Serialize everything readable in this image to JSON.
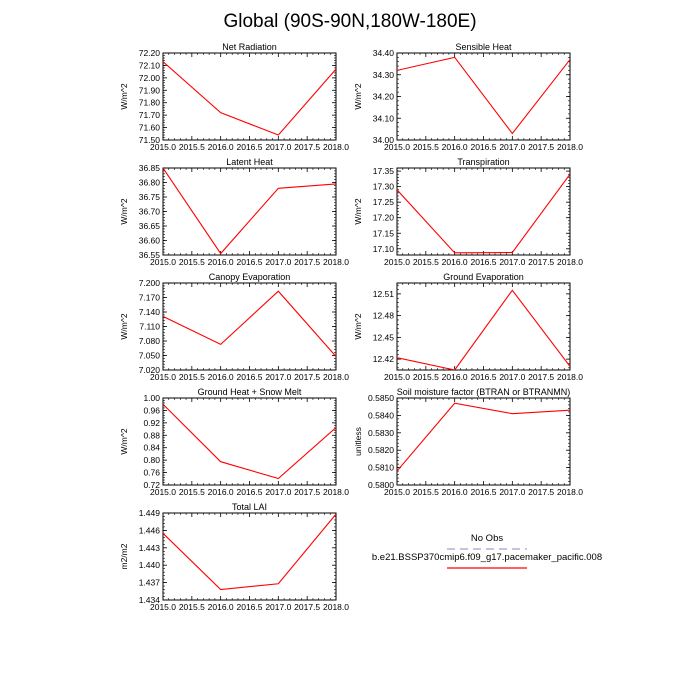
{
  "title": "Global (90S-90N,180W-180E)",
  "colors": {
    "model_line": "#ff0000",
    "obs_line": "#a0a0d0",
    "axis": "#000000"
  },
  "legend": {
    "entries": [
      {
        "name": "No Obs",
        "color": "#a0a0d0",
        "style": "dashed"
      },
      {
        "name": "b.e21.BSSP370cmip6.f09_g17.pacemaker_pacific.008",
        "color": "#ff0000",
        "style": "solid"
      }
    ]
  },
  "chart_data": [
    {
      "type": "line",
      "title": "Net Radiation",
      "ylabel": "W/m^2",
      "x": [
        2015.0,
        2016.0,
        2017.0,
        2018.0
      ],
      "series": [
        {
          "name": "b.e21.BSSP370cmip6.f09_g17.pacemaker_pacific.008",
          "values": [
            72.13,
            71.72,
            71.54,
            72.07
          ]
        }
      ],
      "xlim": [
        2015.0,
        2018.0
      ],
      "ylim": [
        71.5,
        72.2
      ],
      "xticks": [
        "2015.0",
        "2015.5",
        "2016.0",
        "2016.5",
        "2017.0",
        "2017.5",
        "2018.0"
      ],
      "yticks": [
        "71.50",
        "71.60",
        "71.70",
        "71.80",
        "71.90",
        "72.00",
        "72.10",
        "72.20"
      ]
    },
    {
      "type": "line",
      "title": "Sensible Heat",
      "ylabel": "W/m^2",
      "x": [
        2015.0,
        2016.0,
        2017.0,
        2018.0
      ],
      "series": [
        {
          "name": "b.e21.BSSP370cmip6.f09_g17.pacemaker_pacific.008",
          "values": [
            34.32,
            34.38,
            34.03,
            34.37
          ]
        }
      ],
      "xlim": [
        2015.0,
        2018.0
      ],
      "ylim": [
        34.0,
        34.4
      ],
      "xticks": [
        "2015.0",
        "2015.5",
        "2016.0",
        "2016.5",
        "2017.0",
        "2017.5",
        "2018.0"
      ],
      "yticks": [
        "34.00",
        "34.10",
        "34.20",
        "34.30",
        "34.40"
      ]
    },
    {
      "type": "line",
      "title": "Latent Heat",
      "ylabel": "W/m^2",
      "x": [
        2015.0,
        2016.0,
        2017.0,
        2018.0
      ],
      "series": [
        {
          "name": "b.e21.BSSP370cmip6.f09_g17.pacemaker_pacific.008",
          "values": [
            36.85,
            36.555,
            36.78,
            36.795
          ]
        }
      ],
      "xlim": [
        2015.0,
        2018.0
      ],
      "ylim": [
        36.55,
        36.85
      ],
      "xticks": [
        "2015.0",
        "2015.5",
        "2016.0",
        "2016.5",
        "2017.0",
        "2017.5",
        "2018.0"
      ],
      "yticks": [
        "36.55",
        "36.60",
        "36.65",
        "36.70",
        "36.75",
        "36.80",
        "36.85"
      ]
    },
    {
      "type": "line",
      "title": "Transpiration",
      "ylabel": "W/m^2",
      "x": [
        2015.0,
        2016.0,
        2017.0,
        2018.0
      ],
      "series": [
        {
          "name": "b.e21.BSSP370cmip6.f09_g17.pacemaker_pacific.008",
          "values": [
            17.29,
            17.087,
            17.088,
            17.34
          ]
        }
      ],
      "xlim": [
        2015.0,
        2018.0
      ],
      "ylim": [
        17.08,
        17.36
      ],
      "xticks": [
        "2015.0",
        "2015.5",
        "2016.0",
        "2016.5",
        "2017.0",
        "2017.5",
        "2018.0"
      ],
      "yticks": [
        "17.10",
        "17.15",
        "17.20",
        "17.25",
        "17.30",
        "17.35"
      ]
    },
    {
      "type": "line",
      "title": "Canopy Evaporation",
      "ylabel": "W/m^2",
      "x": [
        2015.0,
        2016.0,
        2017.0,
        2018.0
      ],
      "series": [
        {
          "name": "b.e21.BSSP370cmip6.f09_g17.pacemaker_pacific.008",
          "values": [
            7.131,
            7.073,
            7.183,
            7.048
          ]
        }
      ],
      "xlim": [
        2015.0,
        2018.0
      ],
      "ylim": [
        7.02,
        7.2
      ],
      "xticks": [
        "2015.0",
        "2015.5",
        "2016.0",
        "2016.5",
        "2017.0",
        "2017.5",
        "2018.0"
      ],
      "yticks": [
        "7.020",
        "7.050",
        "7.080",
        "7.110",
        "7.140",
        "7.170",
        "7.200"
      ]
    },
    {
      "type": "line",
      "title": "Ground Evaporation",
      "ylabel": "W/m^2",
      "x": [
        2015.0,
        2016.0,
        2017.0,
        2018.0
      ],
      "series": [
        {
          "name": "b.e21.BSSP370cmip6.f09_g17.pacemaker_pacific.008",
          "values": [
            12.422,
            12.405,
            12.515,
            12.41
          ]
        }
      ],
      "xlim": [
        2015.0,
        2018.0
      ],
      "ylim": [
        12.405,
        12.525
      ],
      "xticks": [
        "2015.0",
        "2015.5",
        "2016.0",
        "2016.5",
        "2017.0",
        "2017.5",
        "2018.0"
      ],
      "yticks": [
        "12.42",
        "12.45",
        "12.48",
        "12.51"
      ]
    },
    {
      "type": "line",
      "title": "Ground Heat + Snow Melt",
      "ylabel": "W/m^2",
      "x": [
        2015.0,
        2016.0,
        2017.0,
        2018.0
      ],
      "series": [
        {
          "name": "b.e21.BSSP370cmip6.f09_g17.pacemaker_pacific.008",
          "values": [
            0.98,
            0.795,
            0.741,
            0.905
          ]
        }
      ],
      "xlim": [
        2015.0,
        2018.0
      ],
      "ylim": [
        0.72,
        1.0
      ],
      "xticks": [
        "2015.0",
        "2015.5",
        "2016.0",
        "2016.5",
        "2017.0",
        "2017.5",
        "2018.0"
      ],
      "yticks": [
        "0.72",
        "0.76",
        "0.80",
        "0.84",
        "0.88",
        "0.92",
        "0.96",
        "1.00"
      ]
    },
    {
      "type": "line",
      "title": "Soil moisture factor (BTRAN or BTRANMN)",
      "ylabel": "unitless",
      "x": [
        2015.0,
        2016.0,
        2017.0,
        2018.0
      ],
      "series": [
        {
          "name": "b.e21.BSSP370cmip6.f09_g17.pacemaker_pacific.008",
          "values": [
            0.5808,
            0.5847,
            0.5841,
            0.5843
          ]
        }
      ],
      "xlim": [
        2015.0,
        2018.0
      ],
      "ylim": [
        0.58,
        0.585
      ],
      "xticks": [
        "2015.0",
        "2015.5",
        "2016.0",
        "2016.5",
        "2017.0",
        "2017.5",
        "2018.0"
      ],
      "yticks": [
        "0.5800",
        "0.5810",
        "0.5820",
        "0.5830",
        "0.5840",
        "0.5850"
      ]
    },
    {
      "type": "line",
      "title": "Total LAI",
      "ylabel": "m2/m2",
      "x": [
        2015.0,
        2016.0,
        2017.0,
        2018.0
      ],
      "series": [
        {
          "name": "b.e21.BSSP370cmip6.f09_g17.pacemaker_pacific.008",
          "values": [
            1.4455,
            1.4358,
            1.4368,
            1.4488
          ]
        }
      ],
      "xlim": [
        2015.0,
        2018.0
      ],
      "ylim": [
        1.434,
        1.449
      ],
      "xticks": [
        "2015.0",
        "2015.5",
        "2016.0",
        "2016.5",
        "2017.0",
        "2017.5",
        "2018.0"
      ],
      "yticks": [
        "1.434",
        "1.437",
        "1.440",
        "1.443",
        "1.446",
        "1.449"
      ]
    }
  ]
}
